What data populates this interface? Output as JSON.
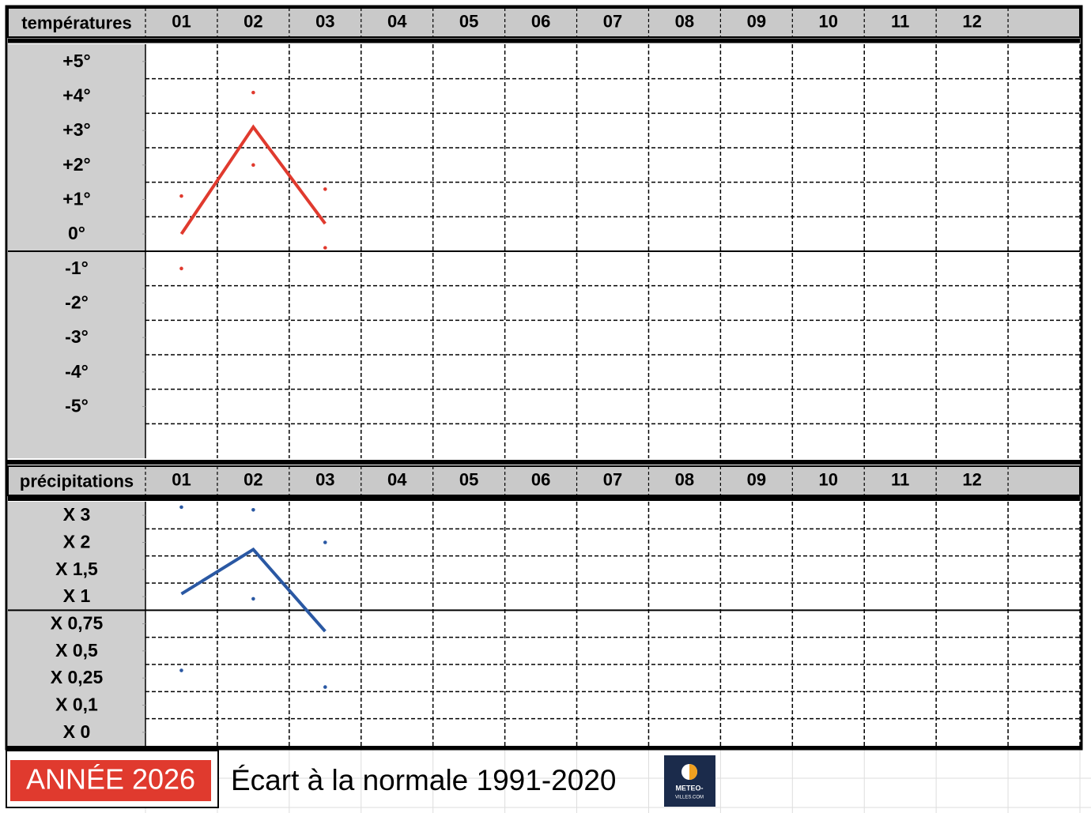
{
  "chart_data": [
    {
      "type": "line",
      "title": "températures",
      "categories": [
        "01",
        "02",
        "03",
        "04",
        "05",
        "06",
        "07",
        "08",
        "09",
        "10",
        "11",
        "12"
      ],
      "ylim": [
        -6.5,
        5.5
      ],
      "yticks": [
        {
          "value": 5,
          "label": "+5°"
        },
        {
          "value": 4,
          "label": "+4°"
        },
        {
          "value": 3,
          "label": "+3°"
        },
        {
          "value": 2,
          "label": "+2°"
        },
        {
          "value": 1,
          "label": "+1°"
        },
        {
          "value": 0,
          "label": "0°"
        },
        {
          "value": -1,
          "label": "-1°"
        },
        {
          "value": -2,
          "label": "-2°"
        },
        {
          "value": -3,
          "label": "-3°"
        },
        {
          "value": -4,
          "label": "-4°"
        },
        {
          "value": -5,
          "label": "-5°"
        }
      ],
      "series": [
        {
          "type": "line",
          "color": "#e03a2e",
          "values": [
            0,
            3.1,
            0.3,
            null,
            null,
            null,
            null,
            null,
            null,
            null,
            null,
            null
          ]
        },
        {
          "type": "scatter",
          "color": "#e03a2e",
          "values": [
            1.1,
            4.1,
            1.3,
            null,
            null,
            null,
            null,
            null,
            null,
            null,
            null,
            null
          ]
        },
        {
          "type": "scatter",
          "color": "#e03a2e",
          "values": [
            -1,
            2,
            -0.4,
            null,
            null,
            null,
            null,
            null,
            null,
            null,
            null,
            null
          ]
        }
      ]
    },
    {
      "type": "line",
      "title": "précipitations",
      "categories": [
        "01",
        "02",
        "03",
        "04",
        "05",
        "06",
        "07",
        "08",
        "09",
        "10",
        "11",
        "12"
      ],
      "yticks": [
        {
          "value": 3,
          "label": "X 3"
        },
        {
          "value": 2,
          "label": "X 2"
        },
        {
          "value": 1.5,
          "label": "X 1,5"
        },
        {
          "value": 1,
          "label": "X 1"
        },
        {
          "value": 0.75,
          "label": "X 0,75"
        },
        {
          "value": 0.5,
          "label": "X 0,5"
        },
        {
          "value": 0.25,
          "label": "X 0,25"
        },
        {
          "value": 0.1,
          "label": "X 0,1"
        },
        {
          "value": 0,
          "label": "X 0"
        }
      ],
      "series": [
        {
          "type": "line",
          "color": "#2a58a3",
          "values": [
            1.05,
            1.87,
            0.68,
            null,
            null,
            null,
            null,
            null,
            null,
            null,
            null,
            null
          ]
        },
        {
          "type": "scatter",
          "color": "#2a58a3",
          "values": [
            3.3,
            3.2,
            2,
            null,
            null,
            null,
            null,
            null,
            null,
            null,
            null,
            null
          ]
        },
        {
          "type": "scatter",
          "color": "#2a58a3",
          "values": [
            0.32,
            0.98,
            0.2,
            null,
            null,
            null,
            null,
            null,
            null,
            null,
            null,
            null
          ]
        }
      ]
    }
  ],
  "footer": {
    "year": "ANNÉE 2026",
    "subtitle": "Écart à la normale 1991-2020",
    "logo_line1": "METEO-",
    "logo_line2": "VILLES.COM"
  }
}
